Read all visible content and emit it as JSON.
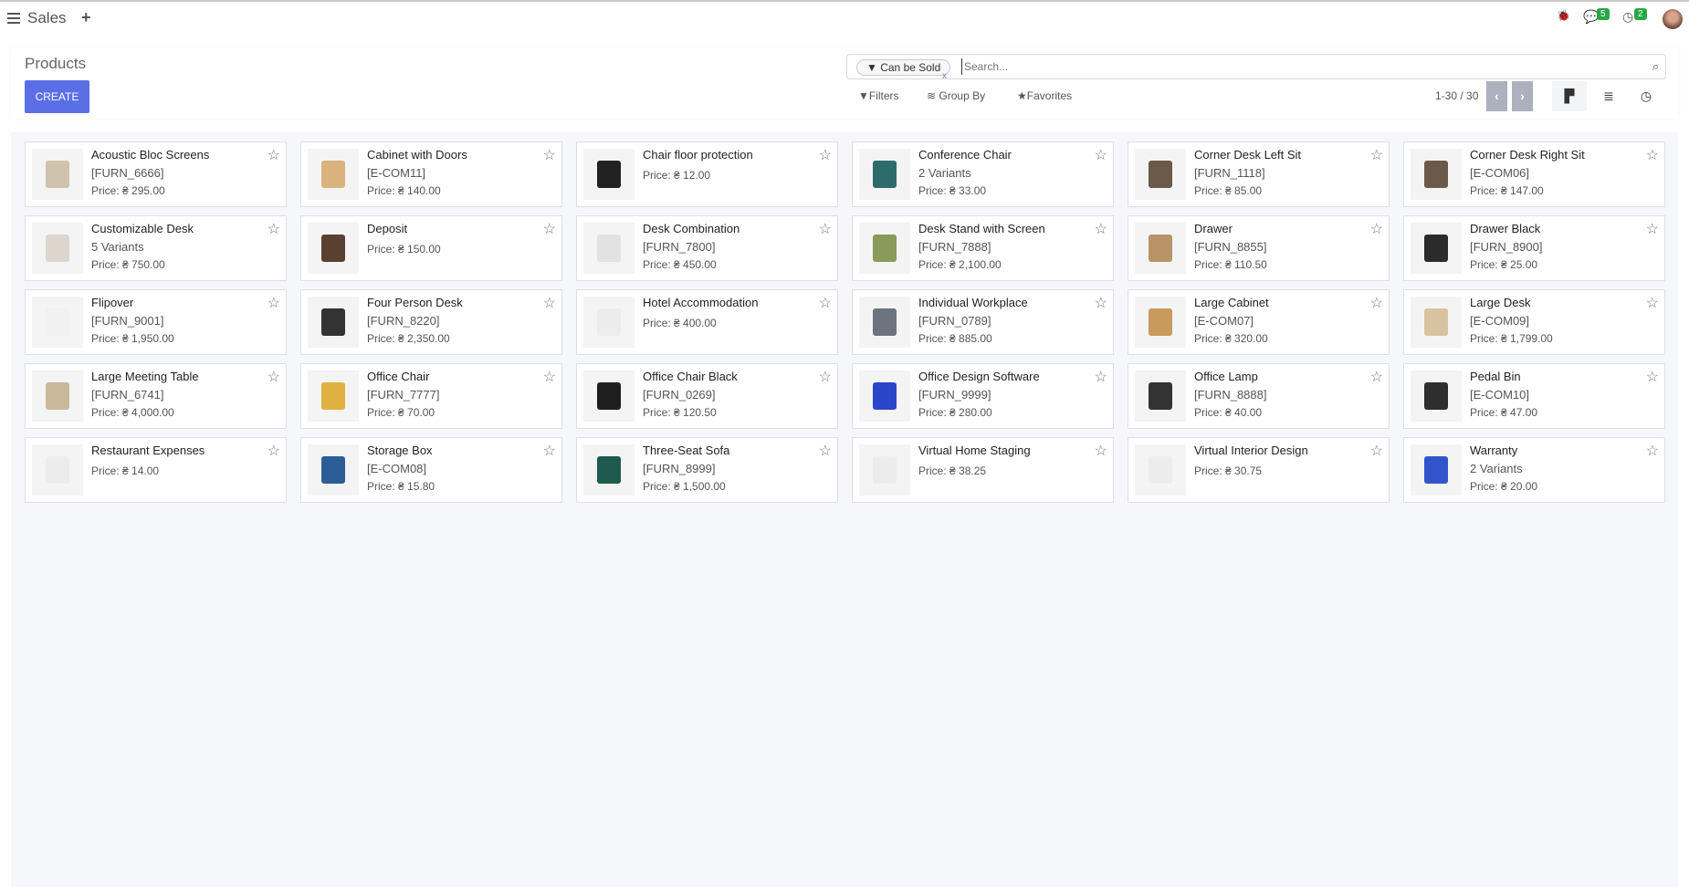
{
  "topbar": {
    "app": "Sales",
    "add": "+",
    "bug": "🐞",
    "messages_count": "5",
    "activities_count": "2"
  },
  "control": {
    "title": "Products",
    "create_label": "CREATE",
    "facet": "Can be Sold",
    "facet_remove": "x",
    "search_placeholder": "Search...",
    "filters": "Filters",
    "group_by": "Group By",
    "favorites": "Favorites",
    "pager": "1-30 / 30",
    "prev": "‹",
    "next": "›"
  },
  "colors": {
    "accent": "#5a6fe6",
    "badge": "#28a745"
  },
  "products": [
    {
      "name": "Acoustic Bloc Screens",
      "ref": "[FURN_6666]",
      "price": "Price: ₴ 295.00",
      "thumb": "#cfc3ad"
    },
    {
      "name": "Cabinet with Doors",
      "ref": "[E-COM11]",
      "price": "Price: ₴ 140.00",
      "thumb": "#d9b27c"
    },
    {
      "name": "Chair floor protection",
      "ref": "",
      "price": "Price: ₴ 12.00",
      "thumb": "#222222"
    },
    {
      "name": "Conference Chair",
      "ref": "2 Variants",
      "price": "Price: ₴ 33.00",
      "thumb": "#2e6b6b"
    },
    {
      "name": "Corner Desk Left Sit",
      "ref": "[FURN_1118]",
      "price": "Price: ₴ 85.00",
      "thumb": "#6b5a4a"
    },
    {
      "name": "Corner Desk Right Sit",
      "ref": "[E-COM06]",
      "price": "Price: ₴ 147.00",
      "thumb": "#6b5a4a"
    },
    {
      "name": "Customizable Desk",
      "ref": "5 Variants",
      "price": "Price: ₴ 750.00",
      "thumb": "#ddd6cc"
    },
    {
      "name": "Deposit",
      "ref": "",
      "price": "Price: ₴ 150.00",
      "thumb": "#5a4030"
    },
    {
      "name": "Desk Combination",
      "ref": "[FURN_7800]",
      "price": "Price: ₴ 450.00",
      "thumb": "#e2e2e2"
    },
    {
      "name": "Desk Stand with Screen",
      "ref": "[FURN_7888]",
      "price": "Price: ₴ 2,100.00",
      "thumb": "#8a9a5b"
    },
    {
      "name": "Drawer",
      "ref": "[FURN_8855]",
      "price": "Price: ₴ 110.50",
      "thumb": "#b89468"
    },
    {
      "name": "Drawer Black",
      "ref": "[FURN_8900]",
      "price": "Price: ₴ 25.00",
      "thumb": "#2b2b2b"
    },
    {
      "name": "Flipover",
      "ref": "[FURN_9001]",
      "price": "Price: ₴ 1,950.00",
      "thumb": "#f0f0f0"
    },
    {
      "name": "Four Person Desk",
      "ref": "[FURN_8220]",
      "price": "Price: ₴ 2,350.00",
      "thumb": "#333333"
    },
    {
      "name": "Hotel Accommodation",
      "ref": "",
      "price": "Price: ₴ 400.00",
      "thumb": "#ececec"
    },
    {
      "name": "Individual Workplace",
      "ref": "[FURN_0789]",
      "price": "Price: ₴ 885.00",
      "thumb": "#6d7480"
    },
    {
      "name": "Large Cabinet",
      "ref": "[E-COM07]",
      "price": "Price: ₴ 320.00",
      "thumb": "#c89a5c"
    },
    {
      "name": "Large Desk",
      "ref": "[E-COM09]",
      "price": "Price: ₴ 1,799.00",
      "thumb": "#d8c3a0"
    },
    {
      "name": "Large Meeting Table",
      "ref": "[FURN_6741]",
      "price": "Price: ₴ 4,000.00",
      "thumb": "#c9b89a"
    },
    {
      "name": "Office Chair",
      "ref": "[FURN_7777]",
      "price": "Price: ₴ 70.00",
      "thumb": "#e0b040"
    },
    {
      "name": "Office Chair Black",
      "ref": "[FURN_0269]",
      "price": "Price: ₴ 120.50",
      "thumb": "#1e1e1e"
    },
    {
      "name": "Office Design Software",
      "ref": "[FURN_9999]",
      "price": "Price: ₴ 280.00",
      "thumb": "#2a45c8"
    },
    {
      "name": "Office Lamp",
      "ref": "[FURN_8888]",
      "price": "Price: ₴ 40.00",
      "thumb": "#333333"
    },
    {
      "name": "Pedal Bin",
      "ref": "[E-COM10]",
      "price": "Price: ₴ 47.00",
      "thumb": "#2e2e2e"
    },
    {
      "name": "Restaurant Expenses",
      "ref": "",
      "price": "Price: ₴ 14.00",
      "thumb": "#ececec"
    },
    {
      "name": "Storage Box",
      "ref": "[E-COM08]",
      "price": "Price: ₴ 15.80",
      "thumb": "#2d5d96"
    },
    {
      "name": "Three-Seat Sofa",
      "ref": "[FURN_8999]",
      "price": "Price: ₴ 1,500.00",
      "thumb": "#1f5a4e"
    },
    {
      "name": "Virtual Home Staging",
      "ref": "",
      "price": "Price: ₴ 38.25",
      "thumb": "#ececec"
    },
    {
      "name": "Virtual Interior Design",
      "ref": "",
      "price": "Price: ₴ 30.75",
      "thumb": "#ececec"
    },
    {
      "name": "Warranty",
      "ref": "2 Variants",
      "price": "Price: ₴ 20.00",
      "thumb": "#3355cc"
    }
  ]
}
